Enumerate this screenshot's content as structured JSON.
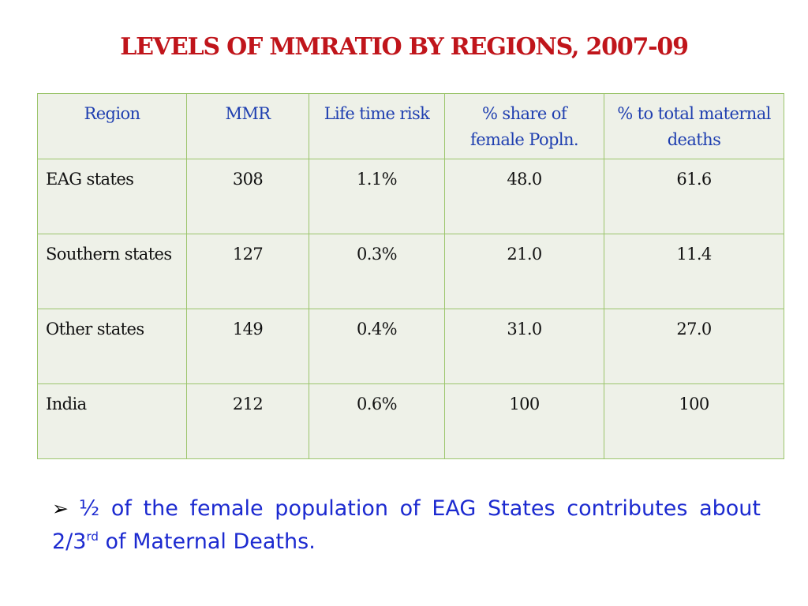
{
  "title": "LEVELS OF MMRATIO BY REGIONS, 2007-09",
  "table": {
    "headers": [
      "Region",
      "MMR",
      "Life time risk",
      "% share of female Popln.",
      "% to total maternal deaths"
    ],
    "rows": [
      [
        "EAG states",
        "308",
        "1.1%",
        "48.0",
        "61.6"
      ],
      [
        "Southern states",
        "127",
        "0.3%",
        "21.0",
        "11.4"
      ],
      [
        "Other states",
        "149",
        "0.4%",
        "31.0",
        "27.0"
      ],
      [
        "India",
        "212",
        "0.6%",
        "100",
        "100"
      ]
    ]
  },
  "note": {
    "bullet_icon": "arrow-bullet-icon",
    "text_main": "½ of the female population of EAG States contributes about 2/3",
    "superscript": "rd",
    "text_tail": " of Maternal Deaths."
  },
  "colors": {
    "title": "#c0151b",
    "header_text": "#1f3fb0",
    "table_border": "#9cc56c",
    "table_fill": "#eef1e8",
    "note_text": "#1c2ad0"
  }
}
